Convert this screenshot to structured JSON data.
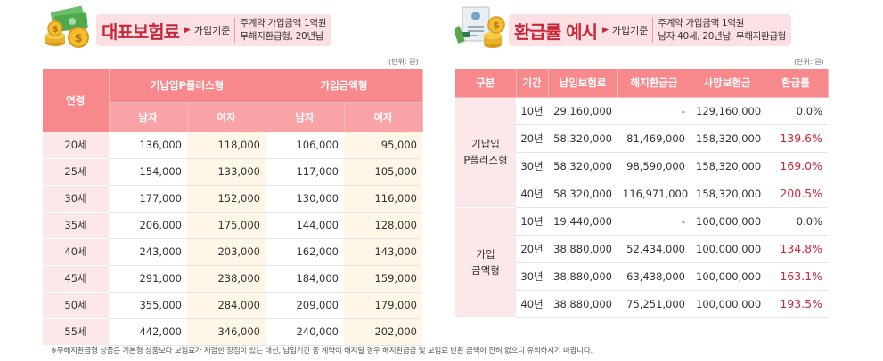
{
  "left": {
    "title": "대표보험료",
    "basis": "가입기준",
    "cond_line1": "주계약 가입금액 1억원",
    "cond_line2": "무해지환급형, 20년납",
    "unit": "(단위: 원)",
    "headers": {
      "age": "연령",
      "group1": "기납입P플러스형",
      "group2": "가입금액형",
      "male": "남자",
      "female": "여자"
    },
    "rows": [
      {
        "age": "20세",
        "v": [
          "136,000",
          "118,000",
          "106,000",
          "95,000"
        ]
      },
      {
        "age": "25세",
        "v": [
          "154,000",
          "133,000",
          "117,000",
          "105,000"
        ]
      },
      {
        "age": "30세",
        "v": [
          "177,000",
          "152,000",
          "130,000",
          "116,000"
        ]
      },
      {
        "age": "35세",
        "v": [
          "206,000",
          "175,000",
          "144,000",
          "128,000"
        ]
      },
      {
        "age": "40세",
        "v": [
          "243,000",
          "203,000",
          "162,000",
          "143,000"
        ]
      },
      {
        "age": "45세",
        "v": [
          "291,000",
          "238,000",
          "184,000",
          "159,000"
        ]
      },
      {
        "age": "50세",
        "v": [
          "355,000",
          "284,000",
          "209,000",
          "179,000"
        ]
      },
      {
        "age": "55세",
        "v": [
          "442,000",
          "346,000",
          "240,000",
          "202,000"
        ]
      }
    ]
  },
  "right": {
    "title": "환급률 예시",
    "basis": "가입기준",
    "cond_line1": "주계약 가입금액 1억원",
    "cond_line2": "남자 40세, 20년납, 무해지환급형",
    "unit": "(단위: 원)",
    "headers": [
      "구분",
      "기간",
      "납입보험료",
      "해지환급금",
      "사망보험금",
      "환급률"
    ],
    "groups": [
      {
        "name_line1": "기납입",
        "name_line2": "P플러스형",
        "rows": [
          {
            "period": "10년",
            "paid": "29,160,000",
            "refund": "-",
            "death": "129,160,000",
            "rate": "0.0%"
          },
          {
            "period": "20년",
            "paid": "58,320,000",
            "refund": "81,469,000",
            "death": "158,320,000",
            "rate": "139.6%"
          },
          {
            "period": "30년",
            "paid": "58,320,000",
            "refund": "98,590,000",
            "death": "158,320,000",
            "rate": "169.0%"
          },
          {
            "period": "40년",
            "paid": "58,320,000",
            "refund": "116,971,000",
            "death": "158,320,000",
            "rate": "200.5%"
          }
        ]
      },
      {
        "name_line1": "가입",
        "name_line2": "금액형",
        "rows": [
          {
            "period": "10년",
            "paid": "19,440,000",
            "refund": "-",
            "death": "100,000,000",
            "rate": "0.0%"
          },
          {
            "period": "20년",
            "paid": "38,880,000",
            "refund": "52,434,000",
            "death": "100,000,000",
            "rate": "134.8%"
          },
          {
            "period": "30년",
            "paid": "38,880,000",
            "refund": "63,438,000",
            "death": "100,000,000",
            "rate": "163.1%"
          },
          {
            "period": "40년",
            "paid": "38,880,000",
            "refund": "75,251,000",
            "death": "100,000,000",
            "rate": "193.5%"
          }
        ]
      }
    ]
  },
  "footnote": "※무해지환급형 상품은 기본형 상품보다 보험료가 저렴한 장점이 있는 대신, 납입기간 중 계약이 해지될 경우 해지환급금 및 보험료 반환 금액이 전혀 없으니 유의하시기 바랍니다.",
  "colors": {
    "accent": "#c8283a",
    "header": "#f7898d",
    "subheader": "#f9a3a6",
    "agecol": "#fde8e9",
    "highlight": "#fef6e6"
  },
  "icons": [
    "money-bundle-icon",
    "document-coin-icon"
  ]
}
